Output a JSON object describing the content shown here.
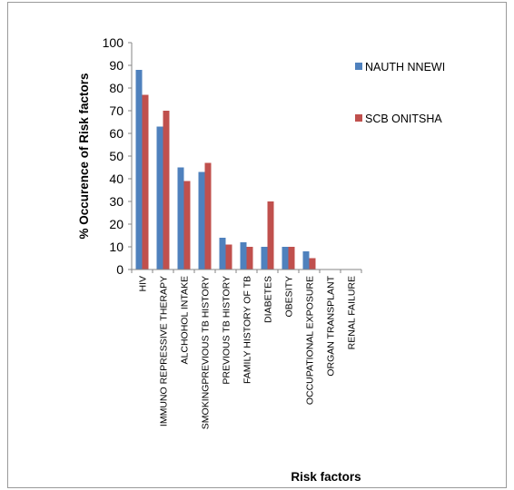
{
  "chart_data": {
    "type": "bar",
    "title": "",
    "xlabel": "Risk factors",
    "ylabel": "% Occurence of Risk factors",
    "ylim": [
      0,
      100
    ],
    "yticks": [
      0,
      10,
      20,
      30,
      40,
      50,
      60,
      70,
      80,
      90,
      100
    ],
    "grid": false,
    "legend_position": "right",
    "categories": [
      "HIV",
      "IMMUNO REPRESSIVE THERAPY",
      "ALCHOHOL INTAKE",
      "SMOKINGPREVIOUS TB HISTORY",
      "PREVIOUS TB HISTORY",
      "FAMILY HISTORY OF TB",
      "DIABETES",
      "OBESITY",
      "OCCUPATIONAL EXPOSURE",
      "ORGAN TRANSPLANT",
      "RENAL FAILURE"
    ],
    "series": [
      {
        "name": "NAUTH NNEWI",
        "color": "#4f81bd",
        "values": [
          88,
          63,
          45,
          43,
          14,
          12,
          10,
          10,
          8,
          0,
          0
        ]
      },
      {
        "name": "SCB ONITSHA",
        "color": "#c0504d",
        "values": [
          77,
          70,
          39,
          47,
          11,
          10,
          30,
          10,
          5,
          0,
          0
        ]
      }
    ]
  }
}
